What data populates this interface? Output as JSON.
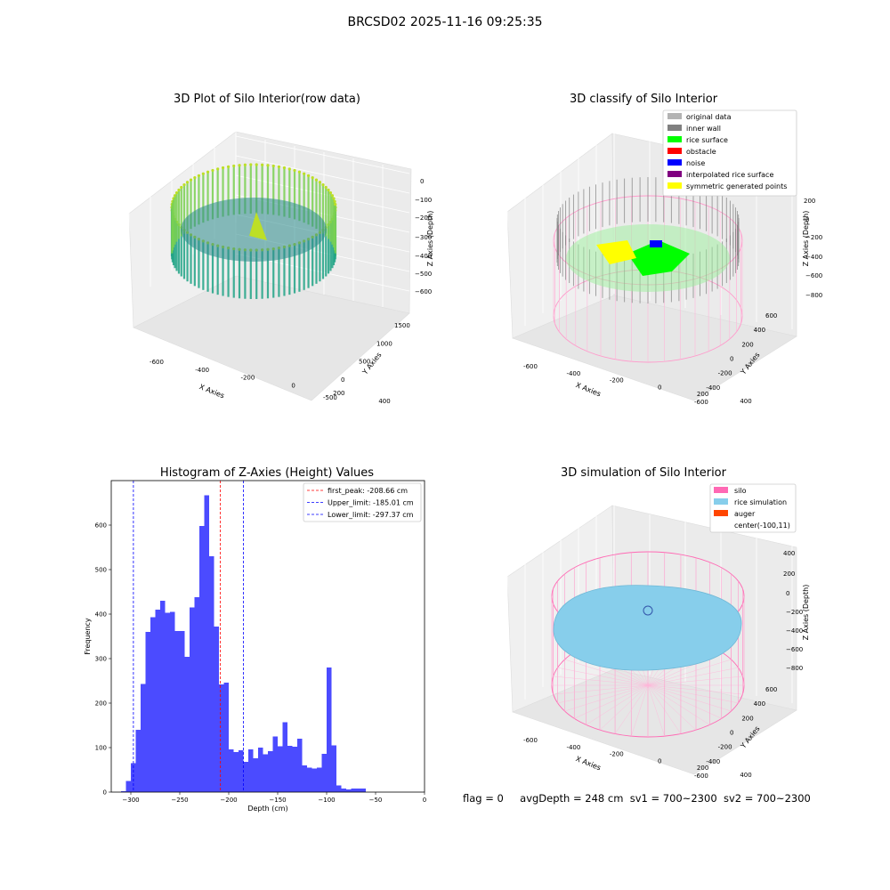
{
  "suptitle": "BRCSD02 2025-11-16 09:25:35",
  "panels": {
    "raw": {
      "title": "3D Plot of Silo Interior(row data)",
      "xlabel": "X Axies",
      "ylabel": "Y Axies",
      "zlabel": "Z Axies (Depth)",
      "xticks": [
        "-600",
        "-400",
        "-200",
        "0",
        "200",
        "400"
      ],
      "yticks": [
        "-500",
        "0",
        "500",
        "1000",
        "1500"
      ],
      "zticks": [
        "0",
        "−100",
        "−200",
        "−300",
        "−400",
        "−500",
        "−600"
      ]
    },
    "classify": {
      "title": "3D classify of Silo Interior",
      "xlabel": "X Axies",
      "ylabel": "Y Axies",
      "zlabel": "Z Axies (Depth)",
      "xticks": [
        "-600",
        "-400",
        "-200",
        "0",
        "200",
        "400"
      ],
      "yticks": [
        "-600",
        "-400",
        "-200",
        "0",
        "200",
        "400",
        "600"
      ],
      "zticks": [
        "200",
        "0",
        "−200",
        "−400",
        "−600",
        "−800"
      ],
      "legend": [
        {
          "label": "original data",
          "color": "#b3b3b3"
        },
        {
          "label": "inner wall",
          "color": "#808080"
        },
        {
          "label": "rice surface",
          "color": "#00ff00"
        },
        {
          "label": "obstacle",
          "color": "#ff0000"
        },
        {
          "label": "noise",
          "color": "#0000ff"
        },
        {
          "label": "interpolated rice surface",
          "color": "#800080"
        },
        {
          "label": "symmetric generated points",
          "color": "#ffff00"
        }
      ]
    },
    "simulation": {
      "title": "3D simulation of Silo Interior",
      "xlabel": "X Axies",
      "ylabel": "Y Axies",
      "zlabel": "Z Axies (Depth)",
      "xticks": [
        "-600",
        "-400",
        "-200",
        "0",
        "200",
        "400"
      ],
      "yticks": [
        "-600",
        "-400",
        "-200",
        "0",
        "200",
        "400",
        "600"
      ],
      "zticks": [
        "400",
        "200",
        "0",
        "−200",
        "−400",
        "−600",
        "−800"
      ],
      "legend": [
        {
          "label": "silo",
          "color": "#ff69b4"
        },
        {
          "label": "rice simulation",
          "color": "#87ceeb"
        },
        {
          "label": "auger",
          "color": "#ff4500"
        },
        {
          "label": "center(-100,11)",
          "color": ""
        }
      ]
    }
  },
  "chart_data": [
    {
      "type": "bar",
      "title": "Histogram of Z-Axies (Height) Values",
      "xlabel": "Depth (cm)",
      "ylabel": "Frequency",
      "xlim": [
        -320,
        0
      ],
      "ylim": [
        0,
        700
      ],
      "bar_color": "#4b4bff",
      "x_ticks": [
        -300,
        -250,
        -200,
        -150,
        -100,
        -50,
        0
      ],
      "y_ticks": [
        0,
        100,
        200,
        300,
        400,
        500,
        600
      ],
      "bin_width": 5,
      "bin_starts": [
        -310,
        -305,
        -300,
        -295,
        -290,
        -285,
        -280,
        -275,
        -270,
        -265,
        -260,
        -255,
        -250,
        -245,
        -240,
        -235,
        -230,
        -225,
        -220,
        -215,
        -210,
        -205,
        -200,
        -195,
        -190,
        -185,
        -180,
        -175,
        -170,
        -165,
        -160,
        -155,
        -150,
        -145,
        -140,
        -135,
        -130,
        -125,
        -120,
        -115,
        -110,
        -105,
        -100,
        -95,
        -90,
        -85,
        -80,
        -75,
        -70,
        -65,
        -60,
        -55,
        -50,
        -45,
        -40,
        -35,
        -30,
        -25,
        -20,
        -15
      ],
      "values": [
        2,
        25,
        65,
        140,
        243,
        360,
        393,
        410,
        430,
        403,
        405,
        362,
        362,
        304,
        415,
        438,
        598,
        667,
        530,
        372,
        242,
        246,
        96,
        90,
        94,
        68,
        96,
        76,
        100,
        85,
        92,
        125,
        103,
        157,
        104,
        102,
        120,
        60,
        55,
        53,
        55,
        86,
        280,
        105,
        15,
        8,
        6,
        8,
        8,
        8,
        0,
        0,
        0,
        0,
        0,
        0,
        0,
        0,
        0,
        0
      ],
      "vlines": [
        {
          "label": "first_peak: -208.66 cm",
          "x": -208.66,
          "color": "#ff0000"
        },
        {
          "label": "Upper_limit: -185.01 cm",
          "x": -185.01,
          "color": "#0000ff"
        },
        {
          "label": "Lower_limit: -297.37 cm",
          "x": -297.37,
          "color": "#0000ff"
        }
      ],
      "legend_position": "upper right"
    }
  ],
  "footer": {
    "flag": "flag = 0",
    "avg": "avgDepth = 248 cm",
    "sv1": "sv1 = 700~2300",
    "sv2": "sv2 = 700~2300"
  }
}
